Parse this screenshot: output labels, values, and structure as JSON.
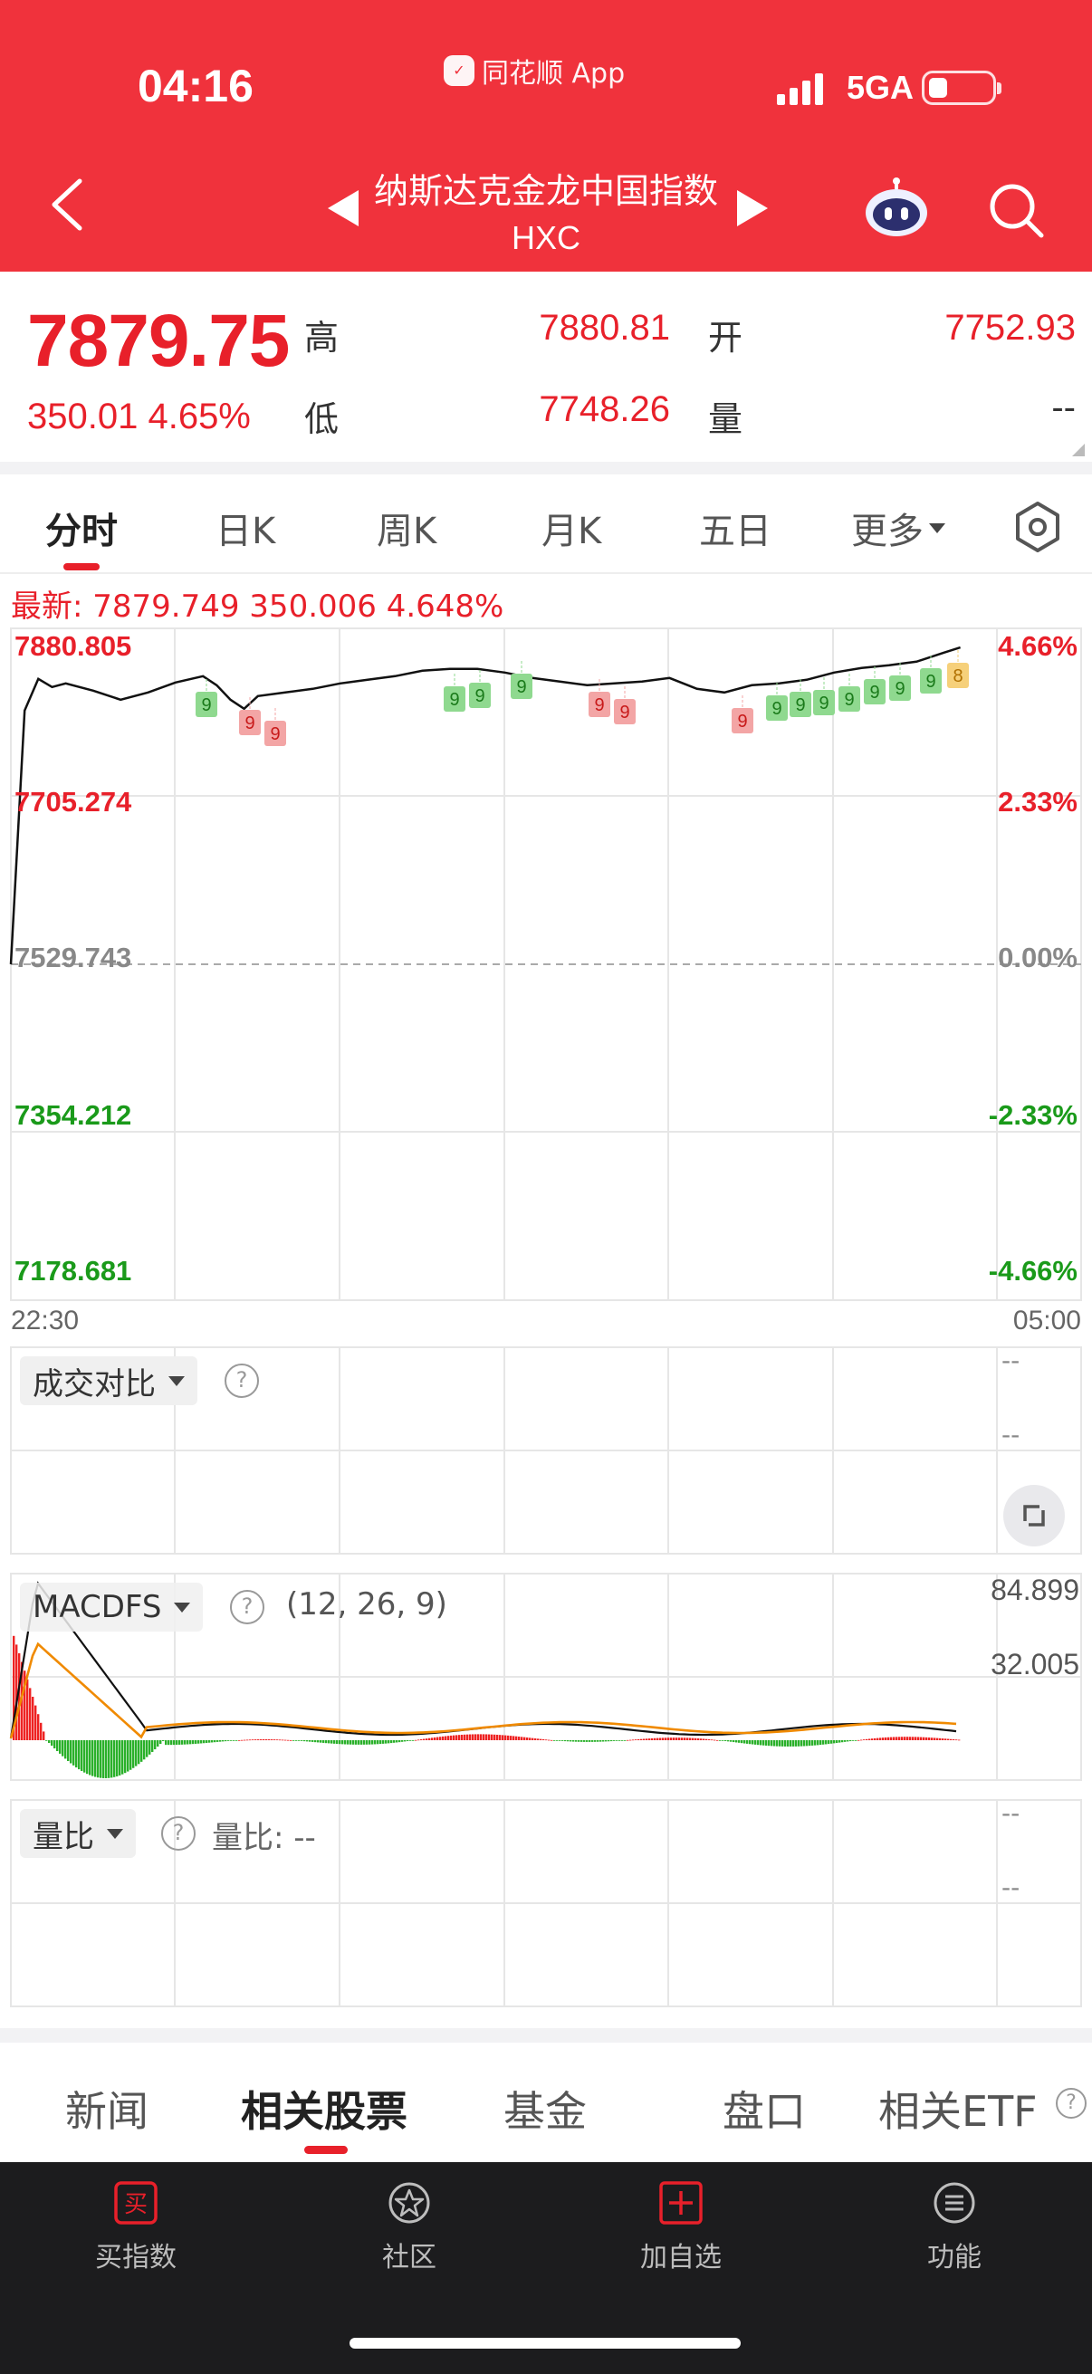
{
  "status_bar": {
    "time": "04:16",
    "app_label": "同花顺 App",
    "network": "5GA"
  },
  "nav": {
    "title": "纳斯达克金龙中国指数",
    "code": "HXC"
  },
  "quote": {
    "price": "7879.75",
    "change": "350.01  4.65%",
    "high_label": "高",
    "high": "7880.81",
    "open_label": "开",
    "open": "7752.93",
    "low_label": "低",
    "low": "7748.26",
    "volume_label": "量",
    "volume": "--"
  },
  "tabs": [
    "分时",
    "日K",
    "周K",
    "月K",
    "五日",
    "更多"
  ],
  "latest_line": "最新: 7879.749  350.006  4.648%",
  "y_axis_left": [
    "7880.805",
    "7705.274",
    "7529.743",
    "7354.212",
    "7178.681"
  ],
  "y_axis_right": [
    "4.66%",
    "2.33%",
    "0.00%",
    "-2.33%",
    "-4.66%"
  ],
  "time_axis": {
    "start": "22:30",
    "end": "05:00"
  },
  "markers": {
    "green": [
      "9",
      "9",
      "9",
      "9",
      "9",
      "9",
      "9",
      "9",
      "9",
      "9",
      "9",
      "9"
    ],
    "red": [
      "9",
      "9",
      "9",
      "9",
      "9"
    ],
    "yellow": [
      "8"
    ]
  },
  "volume_panel": {
    "selector": "成交对比",
    "top_value": "--",
    "mid_value": "--"
  },
  "macd_panel": {
    "selector": "MACDFS",
    "params": "(12, 26, 9)",
    "top_value": "84.899",
    "mid_value": "32.005"
  },
  "ratio_panel": {
    "selector": "量比",
    "value_text": "量比: --",
    "top_value": "--",
    "mid_value": "--"
  },
  "section_tabs": [
    "新闻",
    "相关股票",
    "基金",
    "盘口",
    "相关ETF"
  ],
  "bottom_nav": [
    "买指数",
    "社区",
    "加自选",
    "功能"
  ],
  "colors": {
    "up": "#e8202a",
    "down": "#1a9a1a",
    "header": "#f0323c"
  },
  "chart_data": {
    "type": "line",
    "title": "",
    "x_range": [
      "22:30",
      "05:00"
    ],
    "ylim": [
      7178.681,
      7880.805
    ],
    "baseline": 7529.743,
    "x": [
      "22:30",
      "22:35",
      "22:40",
      "22:45",
      "22:50",
      "23:00",
      "23:10",
      "23:20",
      "23:30",
      "23:40",
      "23:45",
      "23:50",
      "23:55",
      "00:00",
      "00:10",
      "00:20",
      "00:30",
      "00:40",
      "00:50",
      "01:00",
      "01:10",
      "01:20",
      "01:30",
      "01:40",
      "01:50",
      "02:00",
      "02:10",
      "02:20",
      "02:30",
      "02:40",
      "02:50",
      "03:00",
      "03:10",
      "03:20",
      "03:30",
      "03:40",
      "03:50",
      "04:00",
      "04:10",
      "04:16"
    ],
    "series": [
      {
        "values": [
          7529.7,
          7810,
          7845,
          7836,
          7840,
          7832,
          7822,
          7830,
          7841,
          7848,
          7838,
          7822,
          7812,
          7826,
          7830,
          7834,
          7840,
          7844,
          7848,
          7854,
          7856,
          7856,
          7852,
          7846,
          7842,
          7838,
          7840,
          7842,
          7846,
          7834,
          7830,
          7838,
          7840,
          7844,
          7852,
          7857,
          7860,
          7864,
          7874,
          7879.75
        ]
      }
    ]
  }
}
